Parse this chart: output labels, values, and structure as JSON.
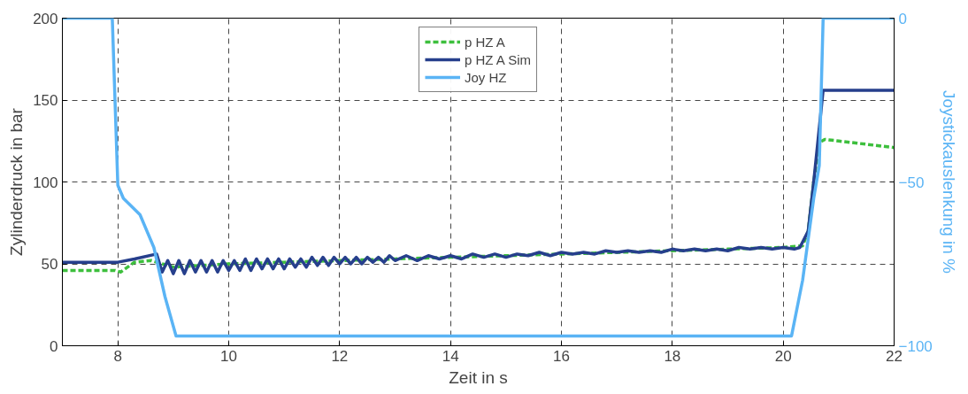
{
  "chart_data": {
    "type": "line",
    "xlabel": "Zeit in s",
    "ylabel": "Zylinderdruck in bar",
    "y2label": "Joystickauslenkung in %",
    "xlim": [
      7,
      22
    ],
    "xticks": [
      8,
      10,
      12,
      14,
      16,
      18,
      20,
      22
    ],
    "ylim": [
      0,
      200
    ],
    "yticks": [
      0,
      50,
      100,
      150,
      200
    ],
    "y2lim": [
      -100,
      0
    ],
    "y2ticks": [
      -100,
      -50,
      0
    ],
    "grid": true,
    "legend": "top",
    "marker": "none",
    "series": [
      {
        "name": "p HZ A",
        "color": "#3dbf3d",
        "line_style": "dashed",
        "x": [
          7,
          7.95,
          8.05,
          8.3,
          8.6,
          8.8,
          9.0,
          10,
          11,
          12,
          13,
          14,
          15,
          16,
          17,
          18,
          19,
          20,
          20.35,
          20.45,
          20.55,
          20.65,
          20.75,
          21,
          22
        ],
        "values": [
          46,
          46,
          45,
          51,
          52,
          50,
          48,
          50,
          51,
          52,
          53,
          54,
          55,
          56,
          57,
          58,
          59,
          60,
          61,
          70,
          100,
          124,
          126,
          125,
          121
        ]
      },
      {
        "name": "p HZ A Sim",
        "color": "#263f8c",
        "line_style": "solid",
        "x": [
          7,
          8.0,
          8.3,
          8.7,
          8.8,
          8.9,
          9.0,
          9.1,
          9.2,
          9.3,
          9.4,
          9.5,
          9.6,
          9.7,
          9.8,
          9.9,
          10.0,
          10.1,
          10.2,
          10.3,
          10.4,
          10.5,
          10.6,
          10.7,
          10.8,
          10.9,
          11.0,
          11.1,
          11.2,
          11.3,
          11.4,
          11.5,
          11.6,
          11.7,
          11.8,
          11.9,
          12.0,
          12.1,
          12.2,
          12.3,
          12.4,
          12.5,
          12.6,
          12.7,
          12.8,
          12.9,
          13.0,
          13.2,
          13.4,
          13.6,
          13.8,
          14.0,
          14.2,
          14.4,
          14.6,
          14.8,
          15.0,
          15.2,
          15.4,
          15.6,
          15.8,
          16.0,
          16.2,
          16.4,
          16.6,
          16.8,
          17.0,
          17.2,
          17.4,
          17.6,
          17.8,
          18.0,
          18.2,
          18.4,
          18.6,
          18.8,
          19.0,
          19.2,
          19.4,
          19.6,
          19.8,
          20.0,
          20.2,
          20.3,
          20.45,
          20.55,
          20.72,
          22
        ],
        "values": [
          51,
          51,
          53,
          56,
          45,
          52,
          44,
          52,
          44,
          52,
          45,
          52,
          45,
          52,
          45,
          52,
          46,
          52,
          46,
          53,
          46,
          53,
          47,
          53,
          47,
          53,
          47,
          53,
          48,
          53,
          48,
          54,
          49,
          54,
          49,
          54,
          50,
          54,
          50,
          54,
          50,
          54,
          51,
          54,
          51,
          55,
          52,
          55,
          52,
          55,
          53,
          55,
          53,
          56,
          54,
          56,
          54,
          56,
          55,
          57,
          55,
          57,
          56,
          57,
          56,
          58,
          57,
          58,
          57,
          58,
          57,
          59,
          58,
          59,
          58,
          59,
          58,
          60,
          59,
          60,
          59,
          60,
          59,
          60,
          70,
          100,
          156,
          156
        ]
      },
      {
        "name": "Joy HZ",
        "color": "#5ab4f5",
        "line_style": "solid",
        "axis": "y2",
        "x": [
          7,
          7.9,
          8.0,
          8.1,
          8.4,
          8.65,
          8.85,
          9.05,
          20.15,
          20.35,
          20.55,
          20.65,
          20.72,
          22
        ],
        "values": [
          0,
          0,
          -51,
          -55,
          -60,
          -70,
          -85,
          -97,
          -97,
          -80,
          -55,
          -45,
          0,
          0
        ]
      }
    ]
  }
}
